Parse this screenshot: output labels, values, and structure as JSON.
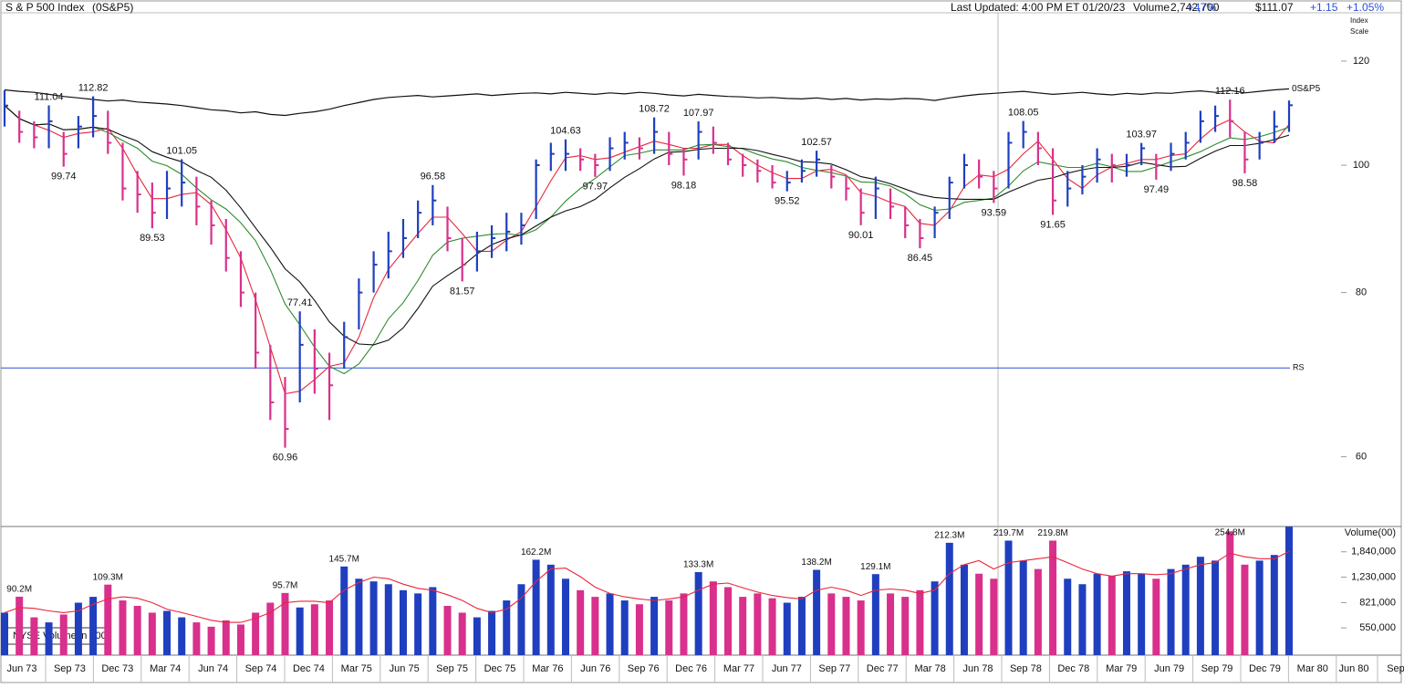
{
  "header": {
    "updated": "Last Updated: 4:00 PM ET 01/20/23",
    "volume_label": "Volume",
    "volume": "2,742,700",
    "volume_change": "+47%",
    "price": "$111.07",
    "change": "+1.15",
    "change_pct": "+1.05%"
  },
  "chart_data": [
    {
      "type": "ohlc",
      "title": "S & P 500 Index",
      "symbol": "(0S&P5)",
      "axis_note": [
        "Index",
        "Scale"
      ],
      "log": true,
      "ylim": [
        53.1,
        130.6
      ],
      "yticks": [
        60,
        80,
        100,
        120
      ],
      "up_color": "#1f3fbf",
      "down_color": "#d8308c",
      "categories": [
        "Jun 73",
        "Sep 73",
        "Dec 73",
        "Mar 74",
        "Jun 74",
        "Sep 74",
        "Dec 74",
        "Mar 75",
        "Jun 75",
        "Sep 75",
        "Dec 75",
        "Mar 76",
        "Jun 76",
        "Sep 76",
        "Dec 76",
        "Mar 77",
        "Jun 77",
        "Sep 77",
        "Dec 77",
        "Mar 78",
        "Jun 78",
        "Sep 78",
        "Dec 78",
        "Mar 79",
        "Jun 79",
        "Sep 79",
        "Dec 79",
        "Mar 80",
        "Jun 80",
        "Sep"
      ],
      "highs": [
        114,
        110,
        108,
        111.04,
        106,
        109,
        112.82,
        110,
        104,
        99,
        97,
        99,
        101.05,
        98,
        94,
        91,
        86,
        80,
        73,
        69,
        77.41,
        75,
        72,
        76,
        82,
        86,
        89,
        91,
        94,
        96.58,
        93,
        88,
        89,
        90,
        92,
        92,
        101,
        104,
        104.63,
        103,
        102,
        105,
        106,
        105,
        108.72,
        106,
        103,
        107.97,
        107,
        104,
        102,
        101,
        100,
        99,
        101,
        102.57,
        100,
        98,
        96,
        98,
        96,
        93,
        91,
        93,
        98,
        102,
        101,
        99,
        106,
        108.05,
        106,
        103,
        99,
        100,
        103,
        102,
        102,
        103.97,
        102,
        104,
        106,
        110,
        111,
        112.16,
        106,
        106,
        110,
        112
      ],
      "lows": [
        107,
        104,
        103,
        103,
        99.74,
        103,
        105,
        102,
        94,
        92,
        89.53,
        91,
        93,
        90,
        87,
        83,
        78,
        70,
        64,
        60.96,
        66,
        67,
        64,
        70,
        75,
        80,
        82,
        85,
        88,
        90,
        86,
        81.57,
        83,
        85,
        86,
        87,
        91,
        99,
        99,
        99,
        97.97,
        99,
        101,
        101,
        102,
        100,
        98.18,
        101,
        102,
        100,
        98,
        97,
        96,
        95.52,
        97,
        98,
        96,
        94,
        90.01,
        91,
        91,
        88,
        86.45,
        88,
        91,
        96,
        96,
        93.59,
        96,
        103,
        100,
        91.65,
        93,
        95,
        97,
        97,
        98,
        100,
        97.49,
        99,
        101,
        104,
        106,
        105,
        98.58,
        101,
        104,
        106
      ],
      "closes": [
        111,
        106,
        105,
        108,
        102,
        107,
        109,
        104,
        96,
        95,
        92,
        96,
        97,
        93,
        90,
        85,
        80,
        72,
        66,
        63,
        73,
        70,
        68,
        74,
        80,
        84,
        86,
        88,
        92,
        94,
        88,
        84,
        86,
        88,
        89,
        90,
        100,
        102,
        102,
        101,
        100,
        103,
        104,
        103,
        106,
        102,
        101,
        106,
        104,
        101,
        100,
        99,
        97,
        97,
        99,
        101,
        98,
        96,
        92,
        96,
        93,
        90,
        88,
        92,
        97,
        100,
        98,
        96,
        104,
        106,
        103,
        94,
        96,
        98,
        101,
        100,
        100,
        103,
        100,
        102,
        104,
        108,
        109,
        108,
        101,
        104,
        107,
        111.07
      ],
      "moving_averages": [
        {
          "color": "#e8263a",
          "values": [
            111,
            108.5,
            107.3,
            106.3,
            105,
            105.7,
            106,
            106.7,
            103,
            98.3,
            94.3,
            94.3,
            95,
            95.3,
            93.3,
            89.3,
            85,
            79,
            72.7,
            67,
            67.3,
            68.7,
            70.3,
            70.7,
            74,
            79.3,
            83.3,
            86,
            88.7,
            91.3,
            91.3,
            88.7,
            86,
            86,
            87.7,
            89,
            93,
            97.3,
            101.3,
            101.7,
            101,
            101.3,
            102.3,
            103.3,
            104.3,
            103.7,
            103,
            103,
            103.7,
            103.7,
            101.7,
            100,
            98.7,
            97.7,
            97.7,
            99,
            99.3,
            98.3,
            95.3,
            94.7,
            93.7,
            93,
            90.3,
            90,
            92.3,
            96.3,
            98.3,
            98,
            99.3,
            102,
            104.3,
            101,
            97.7,
            96,
            98.3,
            99.7,
            100.3,
            101,
            101,
            101.7,
            102,
            104.7,
            107,
            108.3,
            106,
            104.3,
            104,
            107.4
          ]
        },
        {
          "color": "#2e8b2e",
          "values": [
            111,
            108.5,
            107.3,
            107.5,
            106.4,
            106.5,
            106.9,
            105.9,
            104.4,
            103,
            100.7,
            99.9,
            98.4,
            96.1,
            94.1,
            92.6,
            90.4,
            87.6,
            83.3,
            78.4,
            75.6,
            72.7,
            70.3,
            69.4,
            70.6,
            73.1,
            76.4,
            78.6,
            81.7,
            85.4,
            87.4,
            88,
            88.3,
            88.6,
            88.7,
            88.4,
            89.3,
            91.3,
            93.9,
            96,
            97.7,
            99.7,
            101.7,
            102.1,
            102.7,
            102.7,
            102.7,
            103.6,
            103.7,
            103.3,
            102.9,
            101.9,
            101.1,
            100.6,
            99.6,
            99.1,
            98.7,
            98.1,
            97.1,
            97,
            96.4,
            95.1,
            93.3,
            92.4,
            92.6,
            93.7,
            94,
            94.4,
            96.4,
            99,
            100.6,
            100.1,
            99.6,
            99.6,
            100.3,
            99.7,
            98.9,
            98.9,
            99.7,
            100.6,
            101.4,
            102.4,
            103.7,
            104.9,
            104.6,
            105.1,
            105.9,
            106.9
          ]
        },
        {
          "color": "#111111",
          "values": [
            111,
            108.5,
            107.3,
            107.5,
            106.4,
            106.5,
            106.9,
            106.5,
            105.3,
            104.3,
            102.4,
            101.4,
            100.6,
            99.1,
            97.9,
            95.7,
            92.8,
            89.6,
            86.6,
            83.4,
            81.5,
            78.9,
            76,
            74.1,
            73.1,
            73,
            73.6,
            75.2,
            77.8,
            80.9,
            82.4,
            83.8,
            85.6,
            87,
            87.9,
            88.5,
            89.9,
            91.3,
            92.3,
            93,
            94.2,
            96.1,
            97.9,
            99.4,
            101.1,
            102.3,
            102.4,
            102.8,
            103,
            103,
            103,
            102.6,
            101.9,
            101.3,
            100.6,
            100.5,
            100.2,
            99.2,
            98,
            97.5,
            96.8,
            95.9,
            95,
            94.5,
            94.3,
            94.2,
            94.2,
            94.2,
            95.4,
            96.4,
            97.4,
            97.8,
            98.6,
            99.2,
            99.6,
            99.6,
            99.8,
            100.5,
            100.1,
            99.7,
            99.8,
            101.2,
            102.5,
            103.5,
            103.5,
            103.9,
            104.6,
            105.4
          ]
        }
      ],
      "rs_line": {
        "name": "0S&P5",
        "color": "#111111",
        "values": [
          114.1,
          113.8,
          113.6,
          113.2,
          112.8,
          112.5,
          112.2,
          111.9,
          112.1,
          111.7,
          111.5,
          111.3,
          111.0,
          110.6,
          110.2,
          110.0,
          109.6,
          109.8,
          109.3,
          109.1,
          109.5,
          109.8,
          110.3,
          111.0,
          111.6,
          112.2,
          112.6,
          112.8,
          113.0,
          112.7,
          112.9,
          113.1,
          113.3,
          113.0,
          113.2,
          113.4,
          113.5,
          113.3,
          113.6,
          113.4,
          113.2,
          113.5,
          113.3,
          113.6,
          113.4,
          113.1,
          112.9,
          113.2,
          113.0,
          112.8,
          112.7,
          112.5,
          112.6,
          112.4,
          112.3,
          112.5,
          112.2,
          112.4,
          112.1,
          112.3,
          112.2,
          112.4,
          112.3,
          112.0,
          112.5,
          112.9,
          113.2,
          113.4,
          113.6,
          113.8,
          113.5,
          113.2,
          113.4,
          113.6,
          113.3,
          113.1,
          113.4,
          113.2,
          113.5,
          113.4,
          113.7,
          113.9,
          113.6,
          114.0,
          113.5,
          113.8,
          114.1,
          114.3
        ]
      },
      "rs_level": {
        "label": "RS",
        "value": 70.1,
        "color": "#2b4fd8"
      },
      "annotations": [
        {
          "bar": 3,
          "value": 111.04
        },
        {
          "bar": 4,
          "value": 99.74
        },
        {
          "bar": 6,
          "value": 112.82
        },
        {
          "bar": 10,
          "value": 89.53
        },
        {
          "bar": 12,
          "value": 101.05
        },
        {
          "bar": 19,
          "value": 60.96
        },
        {
          "bar": 20,
          "value": 77.41
        },
        {
          "bar": 29,
          "value": 96.58
        },
        {
          "bar": 31,
          "value": 81.57
        },
        {
          "bar": 38,
          "value": 104.63
        },
        {
          "bar": 40,
          "value": 97.97
        },
        {
          "bar": 44,
          "value": 108.72
        },
        {
          "bar": 46,
          "value": 98.18
        },
        {
          "bar": 47,
          "value": 107.97
        },
        {
          "bar": 53,
          "value": 95.52
        },
        {
          "bar": 55,
          "value": 102.57
        },
        {
          "bar": 58,
          "value": 90.01
        },
        {
          "bar": 62,
          "value": 86.45
        },
        {
          "bar": 67,
          "value": 93.59
        },
        {
          "bar": 69,
          "value": 108.05
        },
        {
          "bar": 71,
          "value": 91.65
        },
        {
          "bar": 77,
          "value": 103.97
        },
        {
          "bar": 78,
          "value": 97.49
        },
        {
          "bar": 83,
          "value": 112.16
        },
        {
          "bar": 84,
          "value": 98.58
        }
      ]
    },
    {
      "type": "bar",
      "ylabel": "Volume(00)",
      "note": "NYSE Volume in 100",
      "log": true,
      "ylim": [
        356600,
        2750000
      ],
      "yticks": [
        {
          "value": 550000,
          "label": "550,000"
        },
        {
          "value": 821000,
          "label": "821,000"
        },
        {
          "value": 1230000,
          "label": "1,230,000"
        },
        {
          "value": 1840000,
          "label": "1,840,000"
        }
      ],
      "values": [
        700000,
        902000,
        650000,
        600000,
        680000,
        820000,
        900000,
        1093000,
        850000,
        780000,
        700000,
        720000,
        650000,
        600000,
        560000,
        620000,
        580000,
        700000,
        820000,
        957000,
        760000,
        800000,
        850000,
        1457000,
        1200000,
        1150000,
        1100000,
        1000000,
        950000,
        1050000,
        780000,
        700000,
        650000,
        720000,
        850000,
        1100000,
        1622000,
        1500000,
        1200000,
        1000000,
        900000,
        950000,
        850000,
        800000,
        900000,
        850000,
        950000,
        1333000,
        1150000,
        1050000,
        900000,
        950000,
        880000,
        820000,
        900000,
        1382000,
        950000,
        900000,
        850000,
        1291000,
        950000,
        900000,
        1000000,
        1150000,
        2123000,
        1500000,
        1300000,
        1200000,
        2197000,
        1600000,
        1400000,
        2198000,
        1200000,
        1100000,
        1300000,
        1250000,
        1350000,
        1300000,
        1200000,
        1400000,
        1500000,
        1700000,
        1600000,
        2548000,
        1500000,
        1600000,
        1750000,
        2742700
      ],
      "value_labels": [
        null,
        "90.2M",
        null,
        null,
        null,
        null,
        null,
        "109.3M",
        null,
        null,
        null,
        null,
        null,
        null,
        null,
        null,
        null,
        null,
        null,
        "95.7M",
        null,
        null,
        null,
        "145.7M",
        null,
        null,
        null,
        null,
        null,
        null,
        null,
        null,
        null,
        null,
        null,
        null,
        "162.2M",
        null,
        null,
        null,
        null,
        null,
        null,
        null,
        null,
        null,
        null,
        "133.3M",
        null,
        null,
        null,
        null,
        null,
        null,
        null,
        "138.2M",
        null,
        null,
        null,
        "129.1M",
        null,
        null,
        null,
        null,
        "212.3M",
        null,
        null,
        null,
        "219.7M",
        null,
        null,
        "219.8M",
        null,
        null,
        null,
        null,
        null,
        null,
        null,
        null,
        null,
        null,
        null,
        "254.8M",
        null,
        null,
        null,
        null
      ],
      "average": {
        "color": "#e8263a",
        "values": [
          700000,
          760000,
          750000,
          720000,
          700000,
          720000,
          800000,
          870000,
          900000,
          880000,
          820000,
          740000,
          700000,
          660000,
          620000,
          600000,
          600000,
          640000,
          700000,
          820000,
          840000,
          840000,
          820000,
          1000000,
          1130000,
          1230000,
          1200000,
          1100000,
          1030000,
          1000000,
          930000,
          850000,
          750000,
          700000,
          740000,
          880000,
          1150000,
          1400000,
          1420000,
          1240000,
          1050000,
          950000,
          900000,
          870000,
          850000,
          870000,
          900000,
          1000000,
          1100000,
          1120000,
          1040000,
          970000,
          920000,
          890000,
          870000,
          1000000,
          1050000,
          1000000,
          920000,
          1000000,
          1020000,
          1000000,
          950000,
          1000000,
          1300000,
          1500000,
          1600000,
          1400000,
          1550000,
          1600000,
          1650000,
          1700000,
          1550000,
          1400000,
          1300000,
          1250000,
          1300000,
          1300000,
          1280000,
          1300000,
          1400000,
          1500000,
          1550000,
          1800000,
          1700000,
          1650000,
          1650000,
          1850000
        ]
      }
    }
  ]
}
